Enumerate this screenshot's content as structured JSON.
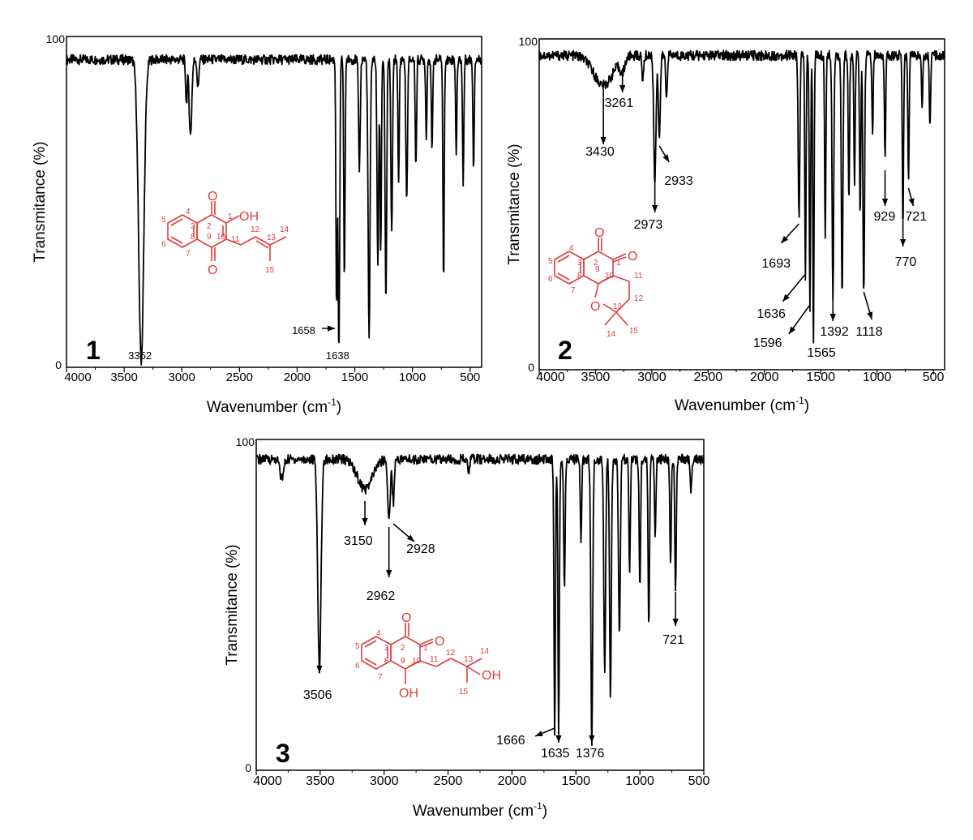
{
  "figure": {
    "structure_color": "#e03c3c",
    "line_color": "#000000"
  },
  "chart_data": [
    {
      "type": "line",
      "panel_label": "1",
      "xlabel": "Wavenumber (cm",
      "xlabel_sup": "-1",
      "xlabel_close": ")",
      "ylabel": "Transmitance  (%)",
      "xlim": [
        4000,
        400
      ],
      "ylim": [
        0,
        100
      ],
      "x_ticks": [
        "4000",
        "3500",
        "3000",
        "2500",
        "2000",
        "1500",
        "1000",
        "500"
      ],
      "y_ticks": [
        "0",
        "100"
      ],
      "baseline": 93,
      "peaks": [
        {
          "x": 3352,
          "y": 2,
          "w": 32
        },
        {
          "x": 3650,
          "y": 93,
          "w": 10
        },
        {
          "x": 2960,
          "y": 80,
          "w": 10
        },
        {
          "x": 2925,
          "y": 70,
          "w": 16
        },
        {
          "x": 2860,
          "y": 84,
          "w": 10
        },
        {
          "x": 1658,
          "y": 18,
          "w": 8
        },
        {
          "x": 1638,
          "y": 4,
          "w": 10
        },
        {
          "x": 1590,
          "y": 25,
          "w": 8
        },
        {
          "x": 1460,
          "y": 60,
          "w": 10
        },
        {
          "x": 1376,
          "y": 9,
          "w": 12
        },
        {
          "x": 1300,
          "y": 30,
          "w": 10
        },
        {
          "x": 1275,
          "y": 35,
          "w": 8
        },
        {
          "x": 1230,
          "y": 20,
          "w": 10
        },
        {
          "x": 1180,
          "y": 40,
          "w": 10
        },
        {
          "x": 1120,
          "y": 55,
          "w": 8
        },
        {
          "x": 1050,
          "y": 50,
          "w": 10
        },
        {
          "x": 970,
          "y": 60,
          "w": 8
        },
        {
          "x": 880,
          "y": 70,
          "w": 8
        },
        {
          "x": 830,
          "y": 65,
          "w": 8
        },
        {
          "x": 730,
          "y": 25,
          "w": 8
        },
        {
          "x": 620,
          "y": 65,
          "w": 8
        },
        {
          "x": 560,
          "y": 55,
          "w": 8
        },
        {
          "x": 470,
          "y": 60,
          "w": 8
        }
      ],
      "annotations": [
        {
          "text": "3352",
          "x": 3352
        },
        {
          "text": "1658",
          "x": 1658
        },
        {
          "text": "1638",
          "x": 1638
        }
      ]
    },
    {
      "type": "line",
      "panel_label": "2",
      "xlabel": "Wavenumber (cm",
      "xlabel_sup": "-1",
      "xlabel_close": ")",
      "ylabel": "Transmitance  (%)",
      "xlim": [
        4000,
        400
      ],
      "ylim": [
        0,
        100
      ],
      "x_ticks": [
        "4000",
        "3500",
        "3000",
        "2500",
        "2000",
        "1500",
        "1000",
        "500"
      ],
      "y_ticks": [
        "0",
        "100"
      ],
      "baseline": 95,
      "peaks": [
        {
          "x": 3430,
          "y": 86,
          "w": 120
        },
        {
          "x": 3261,
          "y": 91,
          "w": 30
        },
        {
          "x": 3080,
          "y": 88,
          "w": 12
        },
        {
          "x": 2973,
          "y": 57,
          "w": 14
        },
        {
          "x": 2933,
          "y": 70,
          "w": 12
        },
        {
          "x": 2870,
          "y": 82,
          "w": 10
        },
        {
          "x": 1693,
          "y": 45,
          "w": 10
        },
        {
          "x": 1636,
          "y": 28,
          "w": 8
        },
        {
          "x": 1596,
          "y": 18,
          "w": 8
        },
        {
          "x": 1565,
          "y": 8,
          "w": 8
        },
        {
          "x": 1460,
          "y": 40,
          "w": 8
        },
        {
          "x": 1392,
          "y": 22,
          "w": 10
        },
        {
          "x": 1310,
          "y": 22,
          "w": 10
        },
        {
          "x": 1250,
          "y": 50,
          "w": 8
        },
        {
          "x": 1200,
          "y": 55,
          "w": 8
        },
        {
          "x": 1150,
          "y": 45,
          "w": 8
        },
        {
          "x": 1118,
          "y": 22,
          "w": 10
        },
        {
          "x": 1040,
          "y": 70,
          "w": 8
        },
        {
          "x": 929,
          "y": 63,
          "w": 8
        },
        {
          "x": 770,
          "y": 44,
          "w": 8
        },
        {
          "x": 721,
          "y": 57,
          "w": 8
        },
        {
          "x": 600,
          "y": 80,
          "w": 8
        },
        {
          "x": 530,
          "y": 73,
          "w": 8
        }
      ],
      "annotations": [
        {
          "text": "3430",
          "x": 3430
        },
        {
          "text": "3261",
          "x": 3261
        },
        {
          "text": "2973",
          "x": 2973
        },
        {
          "text": "2933",
          "x": 2933
        },
        {
          "text": "1693",
          "x": 1693
        },
        {
          "text": "1636",
          "x": 1636
        },
        {
          "text": "1596",
          "x": 1596
        },
        {
          "text": "1565",
          "x": 1565
        },
        {
          "text": "1392",
          "x": 1392
        },
        {
          "text": "1118",
          "x": 1118
        },
        {
          "text": "929",
          "x": 929
        },
        {
          "text": "721",
          "x": 721
        },
        {
          "text": "770",
          "x": 770
        }
      ]
    },
    {
      "type": "line",
      "panel_label": "3",
      "xlabel": "Wavenumber (cm",
      "xlabel_sup": "-1",
      "xlabel_close": ")",
      "ylabel": "Transmitance  (%)",
      "xlim": [
        4000,
        500
      ],
      "ylim": [
        0,
        100
      ],
      "x_ticks": [
        "4000",
        "3500",
        "3000",
        "2500",
        "2000",
        "1500",
        "1000",
        "500"
      ],
      "y_ticks": [
        "0",
        "100"
      ],
      "baseline": 94,
      "peaks": [
        {
          "x": 3506,
          "y": 30,
          "w": 18
        },
        {
          "x": 3800,
          "y": 88,
          "w": 20
        },
        {
          "x": 3150,
          "y": 85,
          "w": 80
        },
        {
          "x": 2962,
          "y": 76,
          "w": 14
        },
        {
          "x": 2928,
          "y": 81,
          "w": 10
        },
        {
          "x": 2340,
          "y": 90,
          "w": 10
        },
        {
          "x": 1666,
          "y": 10,
          "w": 8
        },
        {
          "x": 1635,
          "y": 10,
          "w": 8
        },
        {
          "x": 1590,
          "y": 55,
          "w": 8
        },
        {
          "x": 1460,
          "y": 70,
          "w": 8
        },
        {
          "x": 1376,
          "y": 7,
          "w": 10
        },
        {
          "x": 1275,
          "y": 30,
          "w": 10
        },
        {
          "x": 1230,
          "y": 22,
          "w": 10
        },
        {
          "x": 1160,
          "y": 40,
          "w": 10
        },
        {
          "x": 1080,
          "y": 60,
          "w": 8
        },
        {
          "x": 1000,
          "y": 55,
          "w": 8
        },
        {
          "x": 930,
          "y": 42,
          "w": 8
        },
        {
          "x": 880,
          "y": 70,
          "w": 8
        },
        {
          "x": 760,
          "y": 62,
          "w": 8
        },
        {
          "x": 721,
          "y": 55,
          "w": 8
        },
        {
          "x": 600,
          "y": 85,
          "w": 8
        }
      ],
      "annotations": [
        {
          "text": "3506",
          "x": 3506
        },
        {
          "text": "3150",
          "x": 3150
        },
        {
          "text": "2962",
          "x": 2962
        },
        {
          "text": "2928",
          "x": 2928
        },
        {
          "text": "1666",
          "x": 1666
        },
        {
          "text": "1635",
          "x": 1635
        },
        {
          "text": "1376",
          "x": 1376
        },
        {
          "text": "721",
          "x": 721
        }
      ]
    }
  ],
  "structures": [
    {
      "atoms": [
        "1",
        "2",
        "3",
        "4",
        "5",
        "6",
        "7",
        "8",
        "9",
        "10",
        "11",
        "12",
        "13",
        "14",
        "15"
      ],
      "groups": [
        "O",
        "OH",
        "O"
      ]
    },
    {
      "atoms": [
        "1",
        "2",
        "3",
        "4",
        "5",
        "6",
        "7",
        "8",
        "9",
        "10",
        "11",
        "12",
        "13",
        "14",
        "15"
      ],
      "groups": [
        "O",
        "O",
        "O"
      ]
    },
    {
      "atoms": [
        "1",
        "2",
        "3",
        "4",
        "5",
        "6",
        "7",
        "8",
        "9",
        "10",
        "11",
        "12",
        "13",
        "14",
        "15"
      ],
      "groups": [
        "O",
        "O",
        "OH",
        "OH"
      ]
    }
  ]
}
